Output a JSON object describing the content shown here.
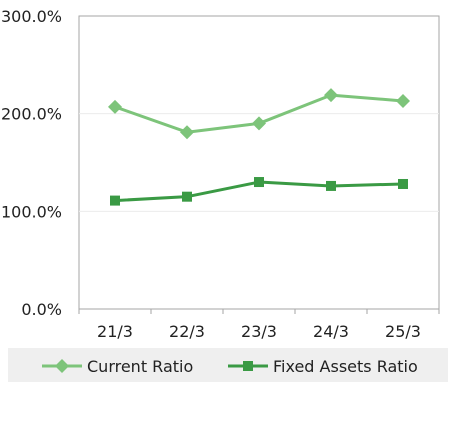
{
  "chart_data": {
    "type": "line",
    "categories": [
      "21/3",
      "22/3",
      "23/3",
      "24/3",
      "25/3"
    ],
    "series": [
      {
        "name": "Current Ratio",
        "values": [
          207,
          181,
          190,
          219,
          213
        ],
        "color": "#7dc47a",
        "marker": "diamond"
      },
      {
        "name": "Fixed Assets Ratio",
        "values": [
          111,
          115,
          130,
          126,
          128
        ],
        "color": "#3a9a44",
        "marker": "square"
      }
    ],
    "y_ticks": [
      0,
      100,
      200,
      300
    ],
    "y_tick_labels": [
      "0.0%",
      "100.0%",
      "200.0%",
      "300.0%"
    ],
    "ylim": [
      0,
      300
    ],
    "legend_position": "bottom",
    "grid": true
  }
}
